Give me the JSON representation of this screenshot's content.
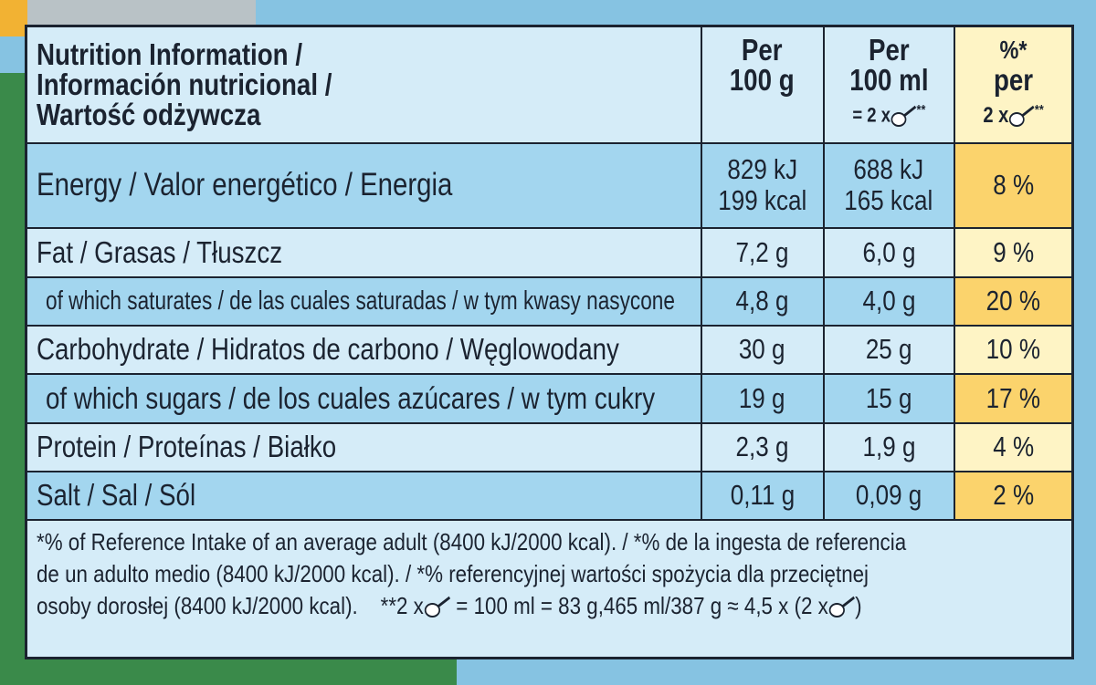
{
  "header": {
    "title": [
      "Nutrition Information /",
      "Información nutricional /",
      "Wartość odżywcza"
    ],
    "per_100g": [
      "Per",
      "100 g"
    ],
    "per_100ml": [
      "Per",
      "100 ml"
    ],
    "per_100ml_portion": "= 2 x",
    "per_100ml_mark": "**",
    "ri": [
      "%*",
      "per"
    ],
    "ri_portion": "2 x",
    "ri_mark": "**"
  },
  "rows": [
    {
      "label": "Energy / Valor energético / Energia",
      "per_100g": [
        "829 kJ",
        "199 kcal"
      ],
      "per_100ml": [
        "688 kJ",
        "165 kcal"
      ],
      "ri": "8 %"
    },
    {
      "label": "Fat / Grasas / Tłuszcz",
      "per_100g": "7,2 g",
      "per_100ml": "6,0 g",
      "ri": "9 %"
    },
    {
      "label": "of which saturates / de las cuales saturadas / w tym kwasy nasycone",
      "per_100g": "4,8 g",
      "per_100ml": "4,0 g",
      "ri": "20 %"
    },
    {
      "label": "Carbohydrate / Hidratos de carbono / Węglowodany",
      "per_100g": "30 g",
      "per_100ml": "25 g",
      "ri": "10 %"
    },
    {
      "label": "of which sugars / de los cuales azúcares / w tym cukry",
      "per_100g": "19 g",
      "per_100ml": "15 g",
      "ri": "17 %"
    },
    {
      "label": "Protein / Proteínas / Białko",
      "per_100g": "2,3 g",
      "per_100ml": "1,9 g",
      "ri": "4 %"
    },
    {
      "label": "Salt / Sal / Sól",
      "per_100g": "0,11 g",
      "per_100ml": "0,09 g",
      "ri": "2 %"
    }
  ],
  "footer": {
    "lines": [
      "*% of Reference Intake of an average adult (8400 kJ/2000 kcal). / *% de la ingesta de referencia",
      "de un adulto medio (8400 kJ/2000 kcal). / *% referencyjnej wartości spożycia dla przeciętnej",
      "osoby dorosłej (8400 kJ/2000 kcal).",
      "**2 x",
      "= 100 ml = 83 g,465 ml/387 g ≈ 4,5 x (2 x",
      ")"
    ]
  }
}
